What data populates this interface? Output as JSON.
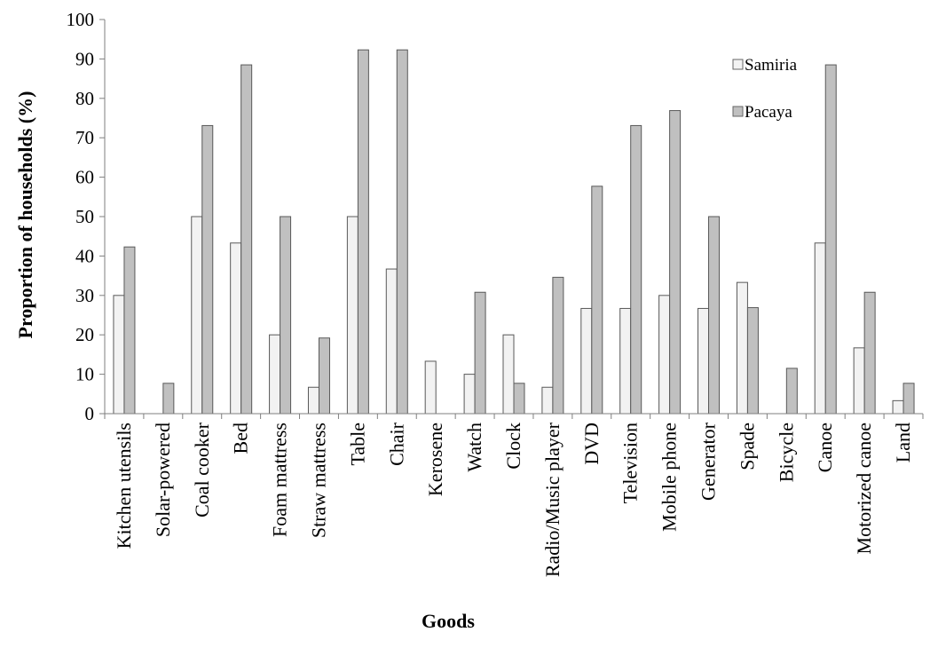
{
  "chart_data": {
    "type": "bar",
    "title": "",
    "xlabel": "Goods",
    "ylabel": "Proportion of households (%)",
    "ylim": [
      0,
      100
    ],
    "yticks": [
      0,
      10,
      20,
      30,
      40,
      50,
      60,
      70,
      80,
      90,
      100
    ],
    "categories": [
      "Kitchen utensils",
      "Solar-powered",
      "Coal cooker",
      "Bed",
      "Foam mattress",
      "Straw mattress",
      "Table",
      "Chair",
      "Kerosene",
      "Watch",
      "Clock",
      "Radio/Music player",
      "DVD",
      "Television",
      "Mobile phone",
      "Generator",
      "Spade",
      "Bicycle",
      "Canoe",
      "Motorized canoe",
      "Land"
    ],
    "series": [
      {
        "name": "Samiria",
        "color": "#f2f2f2",
        "values": [
          30,
          0,
          50,
          43.3,
          20,
          6.7,
          50,
          36.7,
          13.3,
          10,
          20,
          6.7,
          26.7,
          26.7,
          30,
          26.7,
          33.3,
          0,
          43.3,
          16.7,
          3.3
        ]
      },
      {
        "name": "Pacaya",
        "color": "#c0c0c0",
        "values": [
          42.3,
          7.7,
          73.1,
          88.5,
          50,
          19.2,
          92.3,
          92.3,
          0,
          30.8,
          7.7,
          34.6,
          57.7,
          73.1,
          76.9,
          50,
          26.9,
          11.5,
          88.5,
          30.8,
          7.7
        ]
      }
    ],
    "legend": "top-right",
    "grid": false
  }
}
